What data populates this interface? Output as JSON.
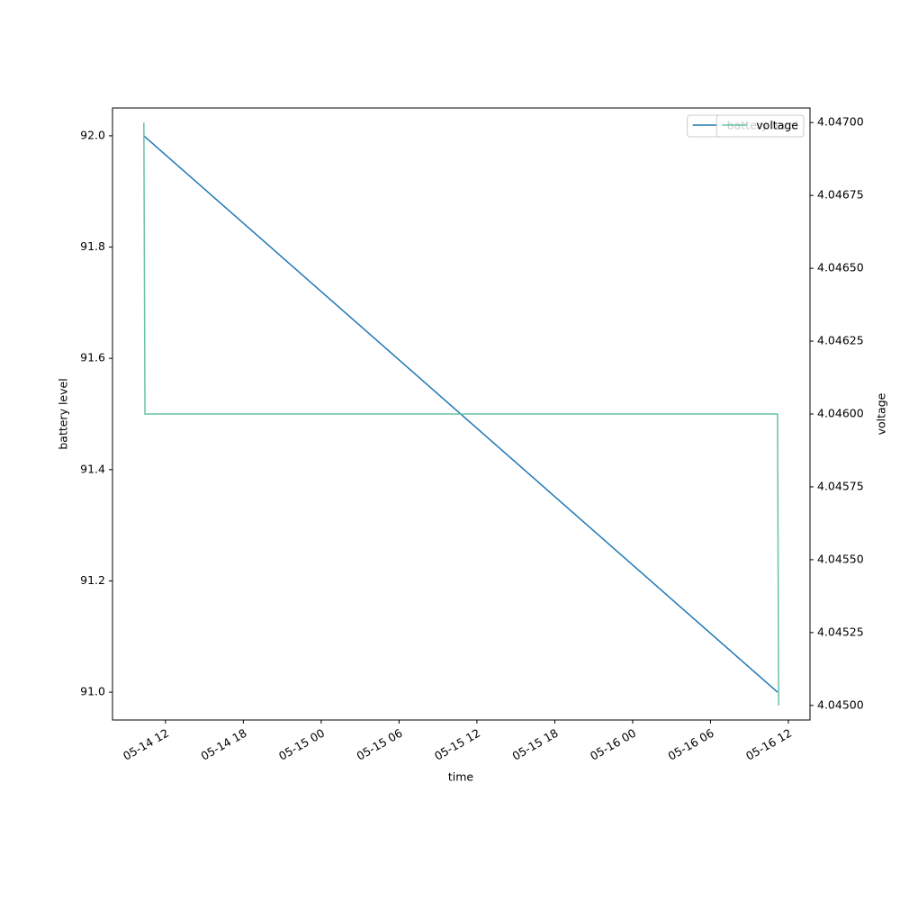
{
  "chart_data": {
    "type": "line",
    "x_label": "time",
    "y_label": "battery level",
    "y2_label": "voltage",
    "xlim": [
      "05-14 07:55",
      "05-16 13:40"
    ],
    "xticks": [
      "05-14 12",
      "05-14 18",
      "05-15 00",
      "05-15 06",
      "05-15 12",
      "05-15 18",
      "05-16 00",
      "05-16 06",
      "05-16 12"
    ],
    "ylim": [
      90.95,
      92.05
    ],
    "yticks": [
      {
        "value": 91,
        "label": "91.0"
      },
      {
        "value": 91.2,
        "label": "91.2"
      },
      {
        "value": 91.4,
        "label": "91.4"
      },
      {
        "value": 91.6,
        "label": "91.6"
      },
      {
        "value": 91.8,
        "label": "91.8"
      },
      {
        "value": 92,
        "label": "92.0"
      }
    ],
    "y2lim": [
      4.04495,
      4.04705
    ],
    "y2ticks": [
      {
        "value": 4.045,
        "label": "4.04500"
      },
      {
        "value": 4.04525,
        "label": "4.04525"
      },
      {
        "value": 4.0455,
        "label": "4.04550"
      },
      {
        "value": 4.04575,
        "label": "4.04575"
      },
      {
        "value": 4.046,
        "label": "4.04600"
      },
      {
        "value": 4.04625,
        "label": "4.04625"
      },
      {
        "value": 4.0465,
        "label": "4.04650"
      },
      {
        "value": 4.04675,
        "label": "4.04675"
      },
      {
        "value": 4.047,
        "label": "4.04700"
      }
    ],
    "legend": "upper right",
    "series": [
      {
        "name": "battery level",
        "color": "#1f77b4",
        "axis": "y",
        "x": [
          "05-14 10:20",
          "05-16 11:10"
        ],
        "values": [
          92,
          91
        ]
      },
      {
        "name": "voltage",
        "color": "#66c2a5",
        "axis": "y2",
        "x": [
          "05-14 10:20",
          "05-14 10:25",
          "05-16 11:10",
          "05-16 11:15"
        ],
        "values": [
          4.047,
          4.046,
          4.046,
          4.045
        ]
      }
    ]
  }
}
